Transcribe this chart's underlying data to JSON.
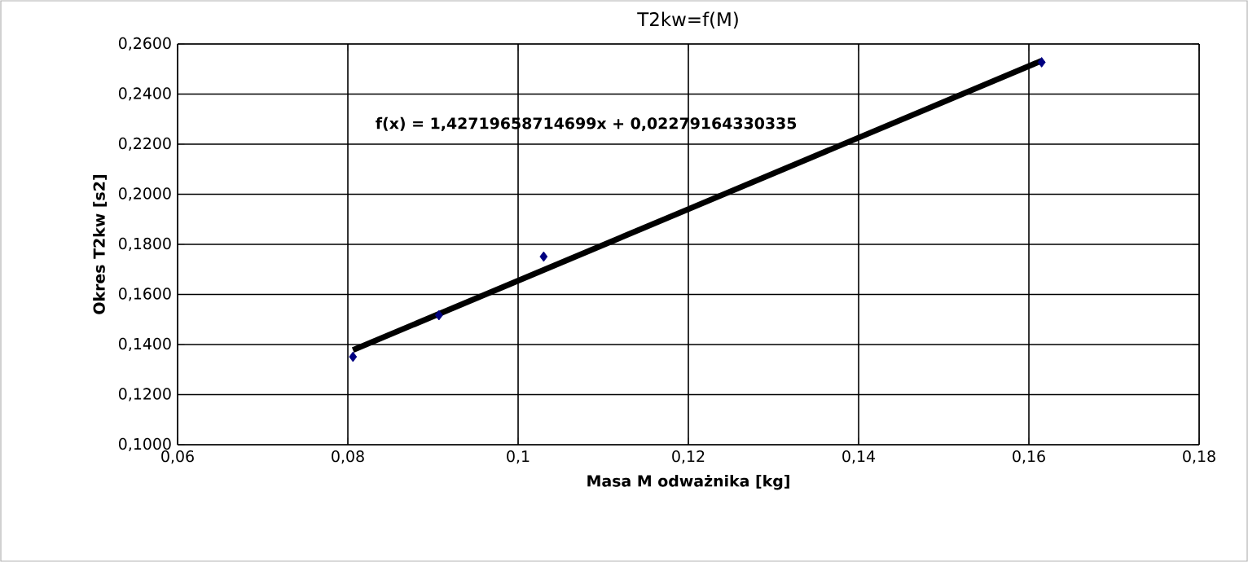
{
  "chart_data": {
    "type": "scatter",
    "title": "T2kw=f(M)",
    "xlabel": "Masa M odważnika [kg]",
    "ylabel": "Okres T2kw [s2]",
    "xlim": [
      0.06,
      0.18
    ],
    "xticks": [
      {
        "value": 0.06,
        "label": "0,06"
      },
      {
        "value": 0.08,
        "label": "0,08"
      },
      {
        "value": 0.1,
        "label": "0,1"
      },
      {
        "value": 0.12,
        "label": "0,12"
      },
      {
        "value": 0.14,
        "label": "0,14"
      },
      {
        "value": 0.16,
        "label": "0,16"
      },
      {
        "value": 0.18,
        "label": "0,18"
      }
    ],
    "ylim": [
      0.1,
      0.26
    ],
    "yticks": [
      {
        "value": 0.1,
        "label": "0,1000"
      },
      {
        "value": 0.12,
        "label": "0,1200"
      },
      {
        "value": 0.14,
        "label": "0,1400"
      },
      {
        "value": 0.16,
        "label": "0,1600"
      },
      {
        "value": 0.18,
        "label": "0,1800"
      },
      {
        "value": 0.2,
        "label": "0,2000"
      },
      {
        "value": 0.22,
        "label": "0,2200"
      },
      {
        "value": 0.24,
        "label": "0,2400"
      },
      {
        "value": 0.26,
        "label": "0,2600"
      }
    ],
    "grid": true,
    "series": [
      {
        "color": "#000080",
        "marker": "diamond",
        "x": [
          0.0806,
          0.0907,
          0.103,
          0.1615
        ],
        "values": [
          0.1351,
          0.1517,
          0.1751,
          0.2527
        ]
      },
      {
        "type": "line",
        "color": "#000000",
        "marker": "none",
        "x": [
          0.0806,
          0.1615
        ],
        "values": [
          0.1378,
          0.2533
        ]
      }
    ],
    "annotations": [
      "f(x) = 1,42719658714699x + 0,02279164330335"
    ]
  }
}
